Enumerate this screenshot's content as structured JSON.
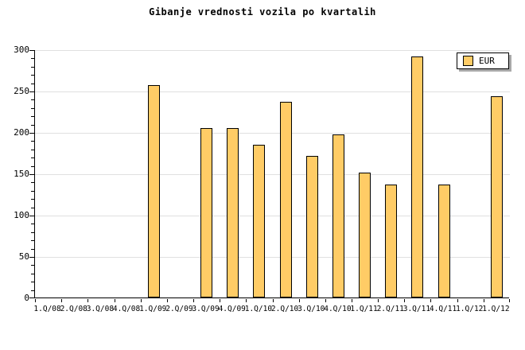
{
  "page": {
    "background": "#FFFFFF"
  },
  "chart_data": {
    "type": "bar",
    "title": "Gibanje vrednosti vozila po kvartalih",
    "categories": [
      "1.Q/08",
      "2.Q/08",
      "3.Q/08",
      "4.Q/08",
      "1.Q/09",
      "2.Q/09",
      "3.Q/09",
      "4.Q/09",
      "1.Q/10",
      "2.Q/10",
      "3.Q/10",
      "4.Q/10",
      "1.Q/11",
      "2.Q/11",
      "3.Q/11",
      "4.Q/11",
      "1.Q/12",
      "1.Q/12"
    ],
    "series": [
      {
        "name": "EUR",
        "values": [
          null,
          null,
          null,
          null,
          257,
          null,
          205,
          205,
          185,
          237,
          171,
          197,
          151,
          137,
          291,
          137,
          null,
          243
        ]
      }
    ],
    "xlabel": "",
    "ylabel": "",
    "ylim": [
      0,
      300
    ],
    "yticks": [
      0,
      50,
      100,
      150,
      200,
      250,
      300
    ],
    "y_minor_step": 10,
    "grid": "horizontal-major",
    "legend_position": "top-right",
    "colors": {
      "bar_fill": "#FFCC66",
      "bar_border": "#000000",
      "gridline": "#E0E0E0",
      "axis": "#000000",
      "text": "#000000",
      "legend_background": "#FFFFFF",
      "legend_shadow": "#A8A8A8"
    }
  }
}
